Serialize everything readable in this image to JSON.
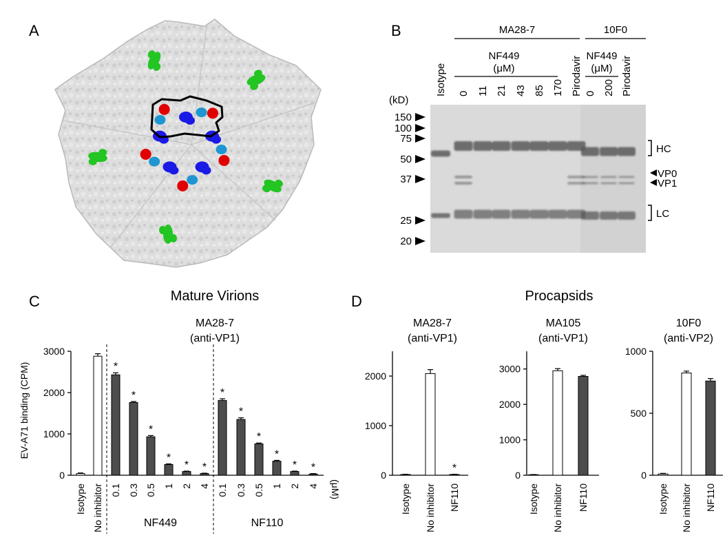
{
  "panel_letters": {
    "a": "A",
    "b": "B",
    "c": "C",
    "d": "D"
  },
  "colors": {
    "capsid": "#dcdcdc",
    "outline": "#000000",
    "green": "#22c522",
    "red": "#e00000",
    "blue": "#1a1ae6",
    "cyan": "#1e96d2",
    "open_bar": "#ffffff",
    "dark_bar": "#4d4d4d",
    "gel_bg": "#d9d9d9",
    "gel_band": "#5a5a5a"
  },
  "gel": {
    "kd_label": "(kD)",
    "group_ma": "MA28-7",
    "group_10f0": "10F0",
    "nf449_um_left": [
      "NF449",
      "(μM)"
    ],
    "nf449_um_right": [
      "NF449",
      "(μM)"
    ],
    "lanes": [
      "Isotype",
      "0",
      "11",
      "21",
      "43",
      "85",
      "170",
      "Pirodavir",
      "0",
      "200",
      "Pirodavir"
    ],
    "markers": [
      "150",
      "100",
      "75",
      "50",
      "37",
      "25",
      "20"
    ],
    "right_labels": {
      "hc": "HC",
      "vp0": "VP0",
      "vp1": "VP1",
      "lc": "LC"
    }
  },
  "panel_c": {
    "section_title": "Mature Virions",
    "subtitle": [
      "MA28-7",
      "(anti-VP1)"
    ],
    "group_labels": [
      "NF449",
      "NF110"
    ],
    "unit": "(μM)"
  },
  "panel_d": {
    "section_title": "Procapsids"
  },
  "chart_data": [
    {
      "type": "bar",
      "title": "MA28-7 (anti-VP1)",
      "ylabel": "EV-A71 binding (CPM)",
      "ylim": [
        0,
        3000
      ],
      "yticks": [
        0,
        1000,
        2000,
        3000
      ],
      "categories": [
        "Isotype",
        "No inhibitor",
        "0.1",
        "0.3",
        "0.5",
        "1",
        "2",
        "4",
        "0.1",
        "0.3",
        "0.5",
        "1",
        "2",
        "4"
      ],
      "groups": [
        "",
        "",
        "NF449",
        "NF449",
        "NF449",
        "NF449",
        "NF449",
        "NF449",
        "NF110",
        "NF110",
        "NF110",
        "NF110",
        "NF110",
        "NF110"
      ],
      "values": [
        40,
        2880,
        2430,
        1760,
        930,
        260,
        90,
        40,
        1810,
        1350,
        760,
        340,
        90,
        30
      ],
      "errors": [
        15,
        60,
        50,
        25,
        30,
        15,
        10,
        10,
        40,
        40,
        20,
        20,
        10,
        10
      ],
      "significant": [
        false,
        false,
        true,
        true,
        true,
        true,
        true,
        true,
        true,
        true,
        true,
        true,
        true,
        true
      ],
      "fill": [
        "open",
        "open",
        "dark",
        "dark",
        "dark",
        "dark",
        "dark",
        "dark",
        "dark",
        "dark",
        "dark",
        "dark",
        "dark",
        "dark"
      ],
      "significance_marker": "*"
    },
    {
      "type": "bar",
      "title": "MA28-7 (anti-VP1)",
      "ylim": [
        0,
        2500
      ],
      "yticks": [
        0,
        1000,
        2000
      ],
      "categories": [
        "Isotype",
        "No inhibitor",
        "NF110"
      ],
      "values": [
        15,
        2050,
        15
      ],
      "errors": [
        5,
        80,
        5
      ],
      "significant": [
        false,
        false,
        true
      ],
      "fill": [
        "open",
        "open",
        "dark"
      ],
      "significance_marker": "*"
    },
    {
      "type": "bar",
      "title": "MA105 (anti-VP1)",
      "ylim": [
        0,
        3500
      ],
      "yticks": [
        0,
        1000,
        2000,
        3000
      ],
      "categories": [
        "Isotype",
        "No inhibitor",
        "NF110"
      ],
      "values": [
        15,
        2950,
        2790
      ],
      "errors": [
        5,
        60,
        30
      ],
      "significant": [
        false,
        false,
        false
      ],
      "fill": [
        "open",
        "open",
        "dark"
      ]
    },
    {
      "type": "bar",
      "title": "10F0 (anti-VP2)",
      "ylim": [
        0,
        1000
      ],
      "yticks": [
        0,
        500,
        1000
      ],
      "categories": [
        "Isotype",
        "No inhibitor",
        "NF110"
      ],
      "values": [
        10,
        825,
        760
      ],
      "errors": [
        5,
        15,
        20
      ],
      "significant": [
        false,
        false,
        false
      ],
      "fill": [
        "open",
        "open",
        "dark"
      ]
    }
  ]
}
